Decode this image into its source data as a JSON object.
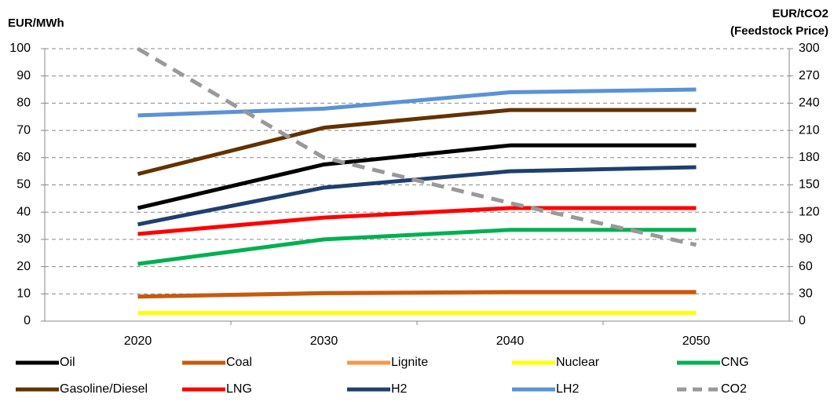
{
  "chart_data": {
    "type": "line",
    "y_label": "EUR/MWh",
    "y2_label": [
      "EUR/tCO2",
      "(Feedstock Price)"
    ],
    "categories": [
      "2020",
      "2030",
      "2040",
      "2050"
    ],
    "ylim": [
      0,
      100
    ],
    "yticks": [
      0,
      10,
      20,
      30,
      40,
      50,
      60,
      70,
      80,
      90,
      100
    ],
    "y2lim": [
      0,
      300
    ],
    "y2ticks": [
      0,
      30,
      60,
      90,
      120,
      150,
      180,
      210,
      240,
      270,
      300
    ],
    "grid": true,
    "series": [
      {
        "name": "Oil",
        "color": "#000000",
        "values": [
          41.5,
          57.5,
          64.5,
          64.5
        ]
      },
      {
        "name": "Coal",
        "color": "#c55a11",
        "values": [
          9,
          10.3,
          10.7,
          10.7
        ]
      },
      {
        "name": "Lignite",
        "color": "#f79646",
        "values": [
          9,
          10.2,
          10.5,
          10.5
        ]
      },
      {
        "name": "Nuclear",
        "color": "#ffff00",
        "values": [
          3,
          3,
          3,
          3
        ]
      },
      {
        "name": "CNG",
        "color": "#00b050",
        "values": [
          21,
          30,
          33.5,
          33.5
        ]
      },
      {
        "name": "Gasoline/Diesel",
        "color": "#623200",
        "values": [
          54,
          71,
          77.5,
          77.5
        ]
      },
      {
        "name": "LNG",
        "color": "#ff0000",
        "values": [
          32,
          38,
          41.5,
          41.5
        ]
      },
      {
        "name": "H2",
        "color": "#1f3f6e",
        "values": [
          35.5,
          49,
          55,
          56.5
        ]
      },
      {
        "name": "LH2",
        "color": "#5b92d6",
        "values": [
          75.5,
          78,
          84,
          85
        ]
      },
      {
        "name": "CO2",
        "color": "#999999",
        "axis": "y2",
        "dashed": true,
        "values": [
          300,
          180,
          130,
          84
        ]
      }
    ]
  }
}
